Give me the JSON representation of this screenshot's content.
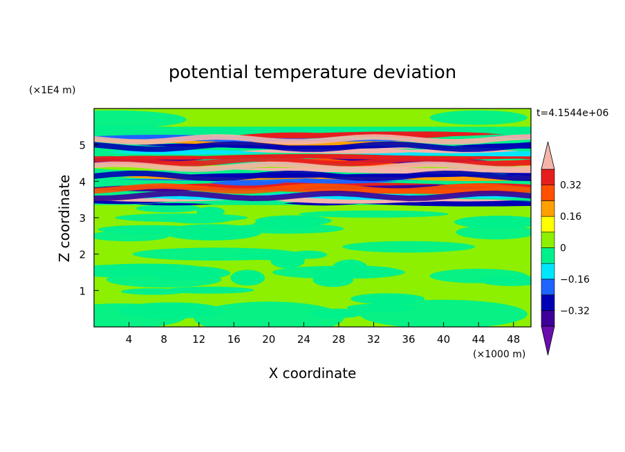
{
  "chart_data": {
    "type": "heatmap",
    "title": "potential temperature deviation",
    "xlabel": "X coordinate",
    "ylabel": "Z coordinate",
    "x_unit": "(×1000 m)",
    "y_unit": "(×1E4 m)",
    "time_label": "t=4.1544e+06",
    "xlim": [
      0,
      50
    ],
    "ylim": [
      0,
      6
    ],
    "x_ticks": [
      4,
      8,
      12,
      16,
      20,
      24,
      28,
      32,
      36,
      40,
      44,
      48
    ],
    "y_ticks": [
      1,
      2,
      3,
      4,
      5
    ],
    "x_tick_labels": [
      "4",
      "8",
      "12",
      "16",
      "20",
      "24",
      "28",
      "32",
      "36",
      "40",
      "44",
      "48"
    ],
    "y_tick_labels": [
      "1",
      "2",
      "3",
      "4",
      "5"
    ],
    "colorbar": {
      "levels": [
        -0.4,
        -0.32,
        -0.24,
        -0.16,
        -0.08,
        0,
        0.08,
        0.16,
        0.24,
        0.32,
        0.4
      ],
      "colors": [
        "#6a0dad",
        "#3d0099",
        "#0000b4",
        "#1e64ff",
        "#00e6ff",
        "#00f08c",
        "#8cf000",
        "#ffff00",
        "#ffa000",
        "#ff5000",
        "#e61e1e",
        "#f5b4aa"
      ],
      "tick_values": [
        0.32,
        0.16,
        0,
        -0.16,
        -0.32
      ],
      "tick_labels": [
        "0.32",
        "0.16",
        "0",
        "−0.16",
        "−0.32"
      ]
    },
    "background_level": "0 to 0.08 (light green) with −0.08 to 0 (green) patches",
    "active_layer_z_range": [
      3.4,
      5.4
    ]
  }
}
